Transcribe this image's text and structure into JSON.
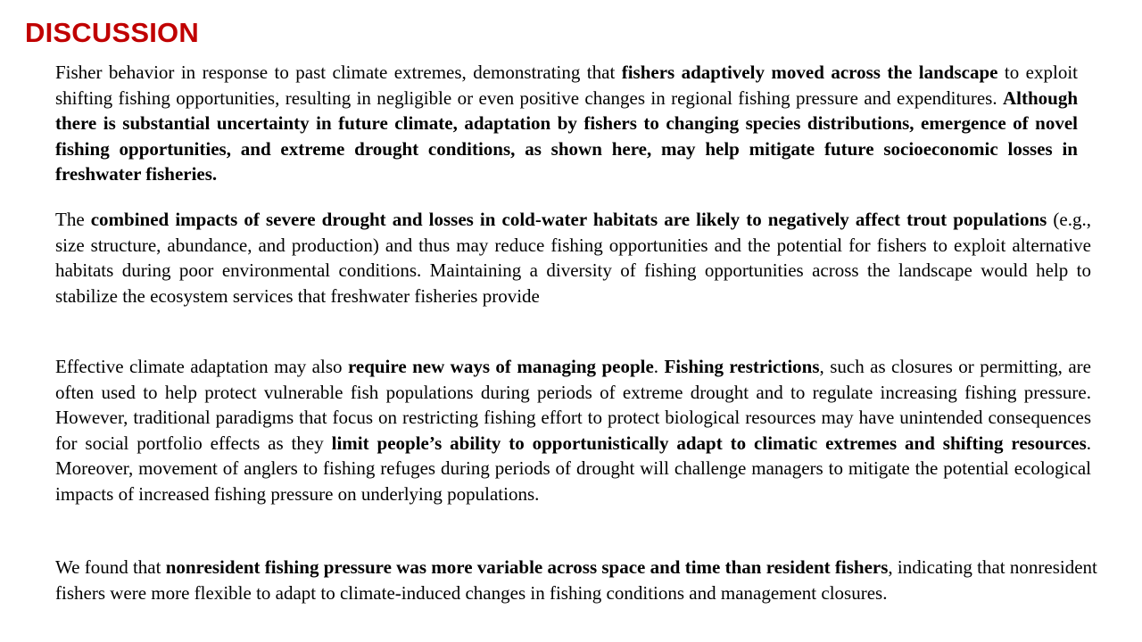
{
  "title": "DISCUSSION",
  "paragraphs": [
    {
      "segments": [
        {
          "text": "Fisher behavior in response to past climate extremes, demonstrating that ",
          "bold": false
        },
        {
          "text": "fishers adaptively moved across the landscape",
          "bold": true
        },
        {
          "text": " to exploit shifting fishing opportunities, resulting in negligible or even positive changes in regional fishing pressure and expenditures. ",
          "bold": false
        },
        {
          "text": "Although there is substantial uncertainty in future climate, adaptation by fishers to changing species distributions, emergence of novel fishing opportunities, and extreme drought conditions, as shown here, may help mitigate future socioeconomic losses in freshwater fisheries.",
          "bold": true
        }
      ]
    },
    {
      "segments": [
        {
          "text": "The ",
          "bold": false
        },
        {
          "text": "combined impacts of severe drought and losses in cold-water habitats are likely to negatively affect trout populations",
          "bold": true
        },
        {
          "text": " (e.g., size structure, abundance, and production) and thus may reduce fishing opportunities and the potential for fishers to exploit alternative habitats during poor environmental conditions. Maintaining a diversity of fishing opportunities across the landscape would help to stabilize the ecosystem services that freshwater fisheries provide",
          "bold": false
        }
      ]
    },
    {
      "segments": [
        {
          "text": "Effective climate adaptation may also ",
          "bold": false
        },
        {
          "text": "require new ways of managing people",
          "bold": true
        },
        {
          "text": ". ",
          "bold": false
        },
        {
          "text": "Fishing restrictions",
          "bold": true
        },
        {
          "text": ", such as closures or permitting, are often used to help protect vulnerable fish populations during periods of extreme drought and to regulate increasing fishing pressure. However, traditional paradigms that focus on restricting fishing effort to protect biological resources may have unintended consequences for social portfolio effects as they ",
          "bold": false
        },
        {
          "text": "limit people’s ability to opportunistically adapt to climatic extremes and shifting resources",
          "bold": true
        },
        {
          "text": ". Moreover, movement of anglers to fishing refuges during periods of drought will challenge managers to mitigate the potential ecological impacts of increased fishing pressure on underlying populations.",
          "bold": false
        }
      ]
    },
    {
      "segments": [
        {
          "text": "We found that ",
          "bold": false
        },
        {
          "text": "nonresident fishing pressure was more variable across space and time than resident fishers",
          "bold": true
        },
        {
          "text": ", indicating that nonresident fishers were more flexible to adapt to climate-induced changes in fishing conditions and management closures.",
          "bold": false
        }
      ]
    }
  ]
}
